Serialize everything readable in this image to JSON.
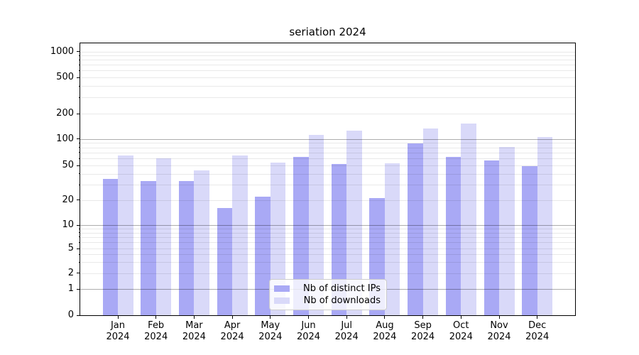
{
  "title": "seriation 2024",
  "chart_data": {
    "type": "bar",
    "title": "seriation 2024",
    "categories": [
      "Jan 2024",
      "Feb 2024",
      "Mar 2024",
      "Apr 2024",
      "May 2024",
      "Jun 2024",
      "Jul 2024",
      "Aug 2024",
      "Sep 2024",
      "Oct 2024",
      "Nov 2024",
      "Dec 2024"
    ],
    "series": [
      {
        "name": "Nb of distinct IPs",
        "color": "#a9a9f5",
        "values": [
          35,
          33,
          33,
          16,
          22,
          62,
          52,
          21,
          89,
          62,
          57,
          49
        ]
      },
      {
        "name": "Nb of downloads",
        "color": "#d9d9f9",
        "values": [
          65,
          60,
          44,
          65,
          54,
          112,
          125,
          53,
          134,
          151,
          81,
          105
        ]
      }
    ],
    "xlabel": "",
    "ylabel": "",
    "y_scale": "symlog",
    "y_ticks": [
      0,
      1,
      2,
      5,
      10,
      20,
      50,
      100,
      200,
      500,
      1000
    ],
    "ylim": [
      0,
      1250
    ],
    "grid": "both",
    "legend_position": "lower center"
  }
}
